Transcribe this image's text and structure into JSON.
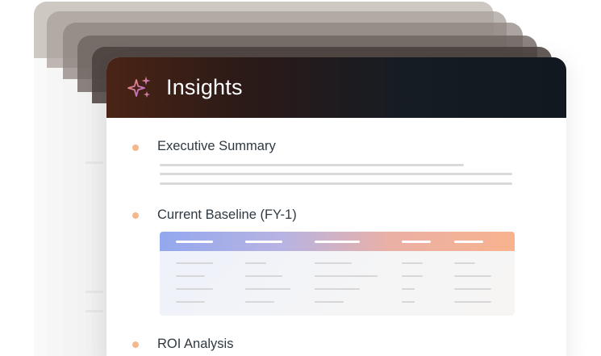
{
  "card": {
    "title": "Insights",
    "sparkle_icon": "sparkle-icon",
    "accent_colors": {
      "header_dark": "#111820",
      "header_warm": "#4a2416",
      "bullet": "#f3b98c"
    }
  },
  "sections": [
    {
      "title": "Executive Summary"
    },
    {
      "title": "Current Baseline (FY-1)"
    },
    {
      "title": "ROI Analysis"
    }
  ],
  "table": {
    "header_gradient": [
      "#93a8ee",
      "#f8b38e"
    ]
  }
}
